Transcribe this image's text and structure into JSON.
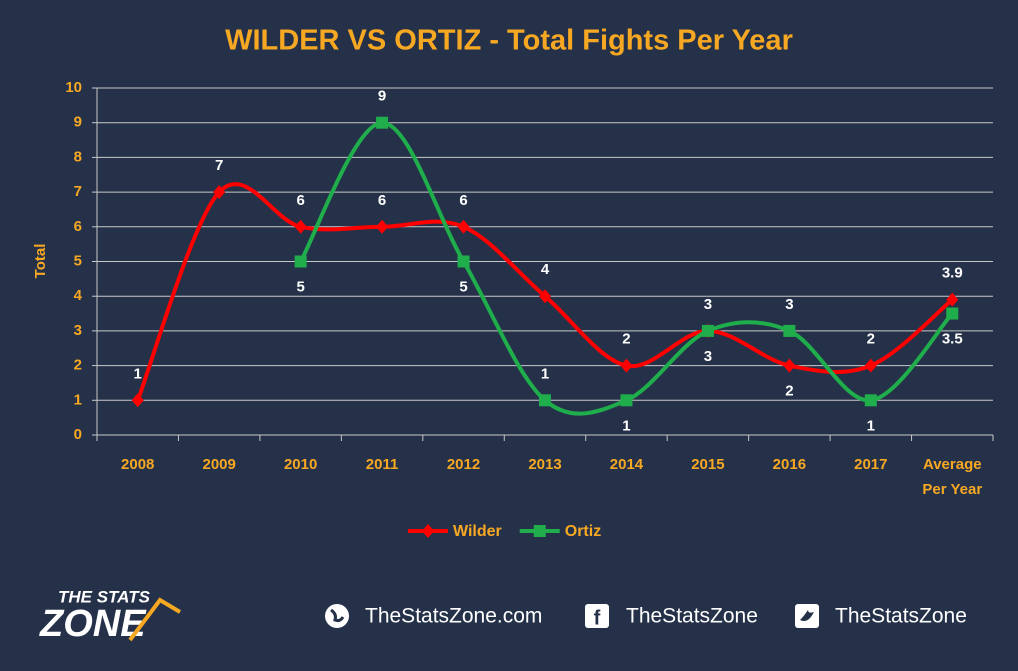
{
  "chart_data": {
    "type": "line",
    "title": "WILDER VS ORTIZ - Total Fights Per Year",
    "y_label": "Total",
    "categories": [
      "2008",
      "2009",
      "2010",
      "2011",
      "2012",
      "2013",
      "2014",
      "2015",
      "2016",
      "2017",
      "Average Per Year"
    ],
    "series": [
      {
        "name": "Wilder",
        "color": "#ff0000",
        "marker": "diamond",
        "values": [
          1,
          7,
          6,
          6,
          6,
          4,
          2,
          3,
          2,
          2,
          3.9
        ]
      },
      {
        "name": "Ortiz",
        "color": "#1fae4b",
        "marker": "square",
        "values": [
          null,
          null,
          5,
          9,
          5,
          1,
          1,
          3,
          3,
          1,
          3.5
        ]
      }
    ],
    "ylim": [
      0,
      10
    ],
    "yticks": [
      0,
      1,
      2,
      3,
      4,
      5,
      6,
      7,
      8,
      9,
      10
    ],
    "grid": true,
    "smooth": true,
    "legend": "bottom"
  },
  "footer": {
    "logo_top": "THE STATS",
    "logo_bottom": "ZONE",
    "website": "TheStatsZone.com",
    "facebook": "TheStatsZone",
    "twitter": "TheStatsZone"
  }
}
